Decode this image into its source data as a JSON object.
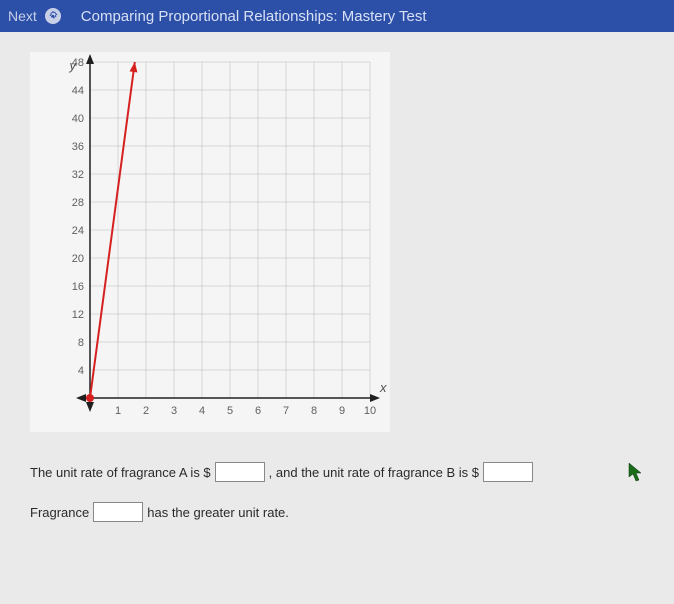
{
  "header": {
    "next_label": "Next",
    "title": "Comparing Proportional Relationships: Mastery Test"
  },
  "chart": {
    "type": "line",
    "y_label": "y",
    "x_label": "x",
    "x_ticks": [
      "1",
      "2",
      "3",
      "4",
      "5",
      "6",
      "7",
      "8",
      "9",
      "10"
    ],
    "y_ticks": [
      "48",
      "44",
      "40",
      "36",
      "32",
      "28",
      "24",
      "20",
      "16",
      "12",
      "8",
      "4"
    ],
    "xlim": [
      0,
      10
    ],
    "ylim": [
      0,
      48
    ],
    "line_points": [
      [
        0,
        0
      ],
      [
        1.6,
        48
      ]
    ],
    "line_color": "#d62020",
    "line_width": 2,
    "origin_marker_color": "#d62020",
    "grid_color": "#b8b8b8",
    "axis_color": "#202020",
    "background_color": "#f5f5f5",
    "tick_label_color": "#606060",
    "tick_fontsize": 11,
    "axis_label_color": "#505050"
  },
  "questions": {
    "line1_a": "The unit rate of fragrance A is $",
    "line1_b": ", and the unit rate of fragrance B is $",
    "line2_a": "Fragrance",
    "line2_b": "has the greater unit rate."
  }
}
